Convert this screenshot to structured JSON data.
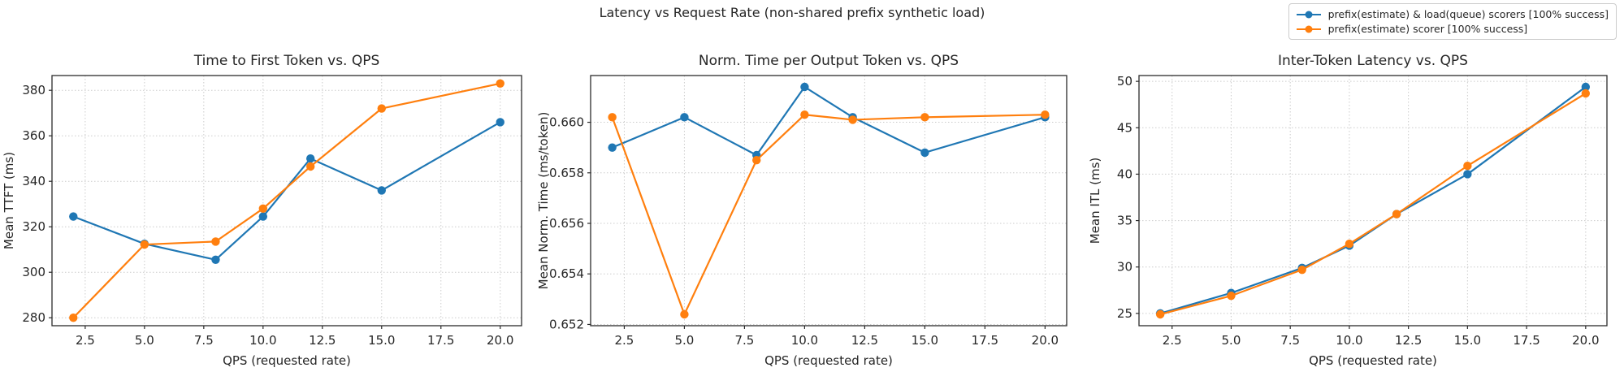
{
  "figure": {
    "title": "Latency vs Request Rate (non-shared prefix synthetic load)"
  },
  "legend": {
    "items": [
      {
        "label": "prefix(estimate) & load(queue) scorers [100% success]",
        "color": "#1f77b4"
      },
      {
        "label": "prefix(estimate) scorer [100% success]",
        "color": "#ff7f0e"
      }
    ]
  },
  "colors": {
    "blue_series": "#1f77b4",
    "orange_series": "#ff7f0e",
    "grid": "#cccccc",
    "spine": "#2b2b2b",
    "text": "#262626"
  },
  "chart_data": [
    {
      "type": "line",
      "title": "Time to First Token vs. QPS",
      "xlabel": "QPS (requested rate)",
      "ylabel": "Mean TTFT (ms)",
      "grid": true,
      "legend_position": "figure-top-right",
      "x": [
        2,
        5,
        8,
        10,
        12,
        15,
        20
      ],
      "xlim": [
        1.1,
        20.9
      ],
      "xticks": [
        2.5,
        5.0,
        7.5,
        10.0,
        12.5,
        15.0,
        17.5,
        20.0
      ],
      "xtick_labels": [
        "2.5",
        "5.0",
        "7.5",
        "10.0",
        "12.5",
        "15.0",
        "17.5",
        "20.0"
      ],
      "ylim": [
        276.5,
        386.5
      ],
      "yticks": [
        280,
        300,
        320,
        340,
        360,
        380
      ],
      "ytick_labels": [
        "280",
        "300",
        "320",
        "340",
        "360",
        "380"
      ],
      "series": [
        {
          "name": "prefix(estimate) & load(queue) scorers [100% success]",
          "color": "#1f77b4",
          "values": [
            324.5,
            312.5,
            305.5,
            324.5,
            350,
            336,
            366
          ]
        },
        {
          "name": "prefix(estimate) scorer [100% success]",
          "color": "#ff7f0e",
          "values": [
            280,
            312.2,
            313.5,
            328,
            346.5,
            372,
            383
          ]
        }
      ]
    },
    {
      "type": "line",
      "title": "Norm. Time per Output Token vs. QPS",
      "xlabel": "QPS (requested rate)",
      "ylabel": "Mean Norm. Time (ms/token)",
      "grid": true,
      "x": [
        2,
        5,
        8,
        10,
        12,
        15,
        20
      ],
      "xlim": [
        1.1,
        20.9
      ],
      "xticks": [
        2.5,
        5.0,
        7.5,
        10.0,
        12.5,
        15.0,
        17.5,
        20.0
      ],
      "xtick_labels": [
        "2.5",
        "5.0",
        "7.5",
        "10.0",
        "12.5",
        "15.0",
        "17.5",
        "20.0"
      ],
      "ylim": [
        0.65195,
        0.66185
      ],
      "yticks": [
        0.652,
        0.654,
        0.656,
        0.658,
        0.66
      ],
      "ytick_labels": [
        "0.652",
        "0.654",
        "0.656",
        "0.658",
        "0.660"
      ],
      "series": [
        {
          "name": "prefix(estimate) & load(queue) scorers [100% success]",
          "color": "#1f77b4",
          "values": [
            0.659,
            0.6602,
            0.6587,
            0.6614,
            0.6602,
            0.6588,
            0.6602
          ]
        },
        {
          "name": "prefix(estimate) scorer [100% success]",
          "color": "#ff7f0e",
          "values": [
            0.6602,
            0.6524,
            0.6585,
            0.6603,
            0.6601,
            0.6602,
            0.6603
          ]
        }
      ]
    },
    {
      "type": "line",
      "title": "Inter-Token Latency vs. QPS",
      "xlabel": "QPS (requested rate)",
      "ylabel": "Mean ITL (ms)",
      "grid": true,
      "x": [
        2,
        5,
        8,
        10,
        12,
        15,
        20
      ],
      "xlim": [
        1.1,
        20.9
      ],
      "xticks": [
        2.5,
        5.0,
        7.5,
        10.0,
        12.5,
        15.0,
        17.5,
        20.0
      ],
      "xtick_labels": [
        "2.5",
        "5.0",
        "7.5",
        "10.0",
        "12.5",
        "15.0",
        "17.5",
        "20.0"
      ],
      "ylim": [
        23.675,
        50.625
      ],
      "yticks": [
        25,
        30,
        35,
        40,
        45,
        50
      ],
      "ytick_labels": [
        "25",
        "30",
        "35",
        "40",
        "45",
        "50"
      ],
      "series": [
        {
          "name": "prefix(estimate) & load(queue) scorers [100% success]",
          "color": "#1f77b4",
          "values": [
            25.0,
            27.2,
            29.9,
            32.3,
            35.7,
            40.0,
            49.4
          ]
        },
        {
          "name": "prefix(estimate) scorer [100% success]",
          "color": "#ff7f0e",
          "values": [
            24.9,
            26.9,
            29.7,
            32.5,
            35.7,
            40.9,
            48.7
          ]
        }
      ]
    }
  ]
}
